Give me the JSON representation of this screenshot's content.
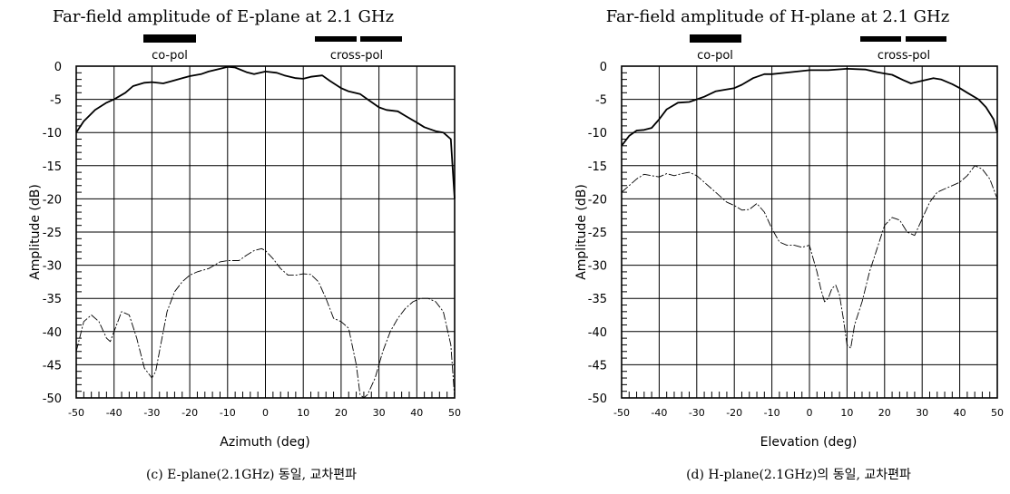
{
  "chart_data": [
    {
      "type": "line",
      "title": "Far-field amplitude of E-plane at 2.1 GHz",
      "xlabel": "Azimuth (deg)",
      "ylabel": "Amplitude (dB)",
      "xlim": [
        -50,
        50
      ],
      "ylim": [
        -50,
        0
      ],
      "xticks": [
        -50,
        -40,
        -30,
        -20,
        -10,
        0,
        10,
        20,
        30,
        40,
        50
      ],
      "yticks": [
        0,
        -5,
        -10,
        -15,
        -20,
        -25,
        -30,
        -35,
        -40,
        -45,
        -50
      ],
      "grid": true,
      "legend": [
        "co-pol",
        "cross-pol"
      ],
      "caption": "(c) E-plane(2.1GHz) 동일, 교차편파",
      "series": [
        {
          "name": "co-pol",
          "style": "solid",
          "x": [
            -50,
            -48,
            -45,
            -42,
            -40,
            -37,
            -35,
            -32,
            -30,
            -27,
            -25,
            -22,
            -20,
            -17,
            -15,
            -12,
            -10,
            -8,
            -5,
            -3,
            0,
            3,
            5,
            8,
            10,
            12,
            15,
            17,
            20,
            22,
            25,
            27,
            30,
            32,
            35,
            37,
            40,
            42,
            45,
            47,
            49,
            50
          ],
          "y": [
            -10.0,
            -8.3,
            -6.6,
            -5.5,
            -5.0,
            -4.0,
            -3.0,
            -2.5,
            -2.4,
            -2.6,
            -2.3,
            -1.8,
            -1.5,
            -1.2,
            -0.8,
            -0.4,
            -0.1,
            -0.2,
            -0.9,
            -1.2,
            -0.8,
            -1.0,
            -1.4,
            -1.8,
            -1.9,
            -1.6,
            -1.4,
            -2.2,
            -3.3,
            -3.8,
            -4.2,
            -5.0,
            -6.2,
            -6.6,
            -6.8,
            -7.5,
            -8.5,
            -9.2,
            -9.8,
            -10.0,
            -11.0,
            -20.0
          ]
        },
        {
          "name": "cross-pol",
          "style": "dashed",
          "x": [
            -50,
            -48,
            -46,
            -44,
            -42,
            -41,
            -40,
            -38,
            -36,
            -34,
            -32,
            -30,
            -29,
            -28,
            -26,
            -24,
            -22,
            -20,
            -18,
            -15,
            -12,
            -10,
            -7,
            -5,
            -3,
            -1,
            0,
            2,
            4,
            6,
            8,
            10,
            12,
            14,
            16,
            18,
            20,
            22,
            24,
            25,
            26,
            27,
            29,
            31,
            33,
            35,
            37,
            39,
            41,
            43,
            45,
            47,
            49,
            50
          ],
          "y": [
            -43.0,
            -38.5,
            -37.5,
            -38.5,
            -41.0,
            -41.5,
            -40.0,
            -37.0,
            -37.5,
            -41.0,
            -45.5,
            -47.0,
            -46.0,
            -43.0,
            -37.0,
            -34.0,
            -32.5,
            -31.5,
            -31.0,
            -30.5,
            -29.5,
            -29.3,
            -29.3,
            -28.5,
            -27.8,
            -27.5,
            -27.8,
            -29.0,
            -30.5,
            -31.5,
            -31.5,
            -31.3,
            -31.4,
            -32.5,
            -35.0,
            -38.0,
            -38.5,
            -39.5,
            -45.0,
            -49.5,
            -50.0,
            -49.5,
            -47.0,
            -43.0,
            -40.0,
            -38.0,
            -36.5,
            -35.5,
            -35.0,
            -35.0,
            -35.5,
            -37.0,
            -42.0,
            -50.0
          ]
        }
      ]
    },
    {
      "type": "line",
      "title": "Far-field amplitude of H-plane at 2.1 GHz",
      "xlabel": "Elevation (deg)",
      "ylabel": "Amplitude (dB)",
      "xlim": [
        -50,
        50
      ],
      "ylim": [
        -50,
        0
      ],
      "xticks": [
        -50,
        -40,
        -30,
        -20,
        -10,
        0,
        10,
        20,
        30,
        40,
        50
      ],
      "yticks": [
        0,
        -5,
        -10,
        -15,
        -20,
        -25,
        -30,
        -35,
        -40,
        -45,
        -50
      ],
      "grid": true,
      "legend": [
        "co-pol",
        "cross-pol"
      ],
      "caption": "(d) H-plane(2.1GHz)의 동일, 교차편파",
      "series": [
        {
          "name": "co-pol",
          "style": "solid",
          "x": [
            -50,
            -48,
            -46,
            -44,
            -42,
            -40,
            -38,
            -35,
            -32,
            -30,
            -28,
            -25,
            -22,
            -20,
            -18,
            -15,
            -12,
            -10,
            -5,
            0,
            5,
            10,
            15,
            18,
            20,
            22,
            25,
            27,
            30,
            33,
            35,
            38,
            40,
            42,
            45,
            47,
            49,
            50
          ],
          "y": [
            -12.0,
            -10.5,
            -9.7,
            -9.6,
            -9.3,
            -8.0,
            -6.5,
            -5.5,
            -5.4,
            -5.0,
            -4.6,
            -3.8,
            -3.5,
            -3.3,
            -2.8,
            -1.8,
            -1.2,
            -1.2,
            -0.9,
            -0.6,
            -0.6,
            -0.4,
            -0.5,
            -0.9,
            -1.1,
            -1.3,
            -2.1,
            -2.6,
            -2.2,
            -1.8,
            -2.0,
            -2.7,
            -3.3,
            -4.0,
            -5.0,
            -6.2,
            -8.0,
            -10.0
          ]
        },
        {
          "name": "cross-pol",
          "style": "dashed",
          "x": [
            -50,
            -48,
            -46,
            -44,
            -42,
            -40,
            -38,
            -36,
            -34,
            -32,
            -30,
            -28,
            -26,
            -24,
            -22,
            -20,
            -18,
            -16,
            -14,
            -12,
            -10,
            -8,
            -6,
            -4,
            -2,
            0,
            1,
            2,
            3,
            4,
            5,
            6,
            7,
            8,
            9,
            10,
            11,
            12,
            14,
            16,
            18,
            20,
            22,
            24,
            26,
            28,
            30,
            32,
            34,
            36,
            38,
            40,
            42,
            44,
            46,
            48,
            50
          ],
          "y": [
            -19.0,
            -18.0,
            -17.0,
            -16.3,
            -16.5,
            -16.7,
            -16.2,
            -16.5,
            -16.2,
            -16.0,
            -16.5,
            -17.5,
            -18.5,
            -19.5,
            -20.5,
            -21.0,
            -21.7,
            -21.6,
            -20.7,
            -22.0,
            -24.5,
            -26.5,
            -27.0,
            -27.0,
            -27.3,
            -27.0,
            -29.0,
            -31.0,
            -33.5,
            -35.5,
            -35.0,
            -33.5,
            -33.0,
            -34.5,
            -38.0,
            -42.0,
            -42.5,
            -39.0,
            -35.5,
            -31.0,
            -27.5,
            -24.0,
            -22.8,
            -23.2,
            -25.0,
            -25.5,
            -23.0,
            -20.5,
            -19.0,
            -18.5,
            -18.0,
            -17.5,
            -16.5,
            -15.0,
            -15.5,
            -17.0,
            -20.0
          ]
        }
      ]
    }
  ]
}
